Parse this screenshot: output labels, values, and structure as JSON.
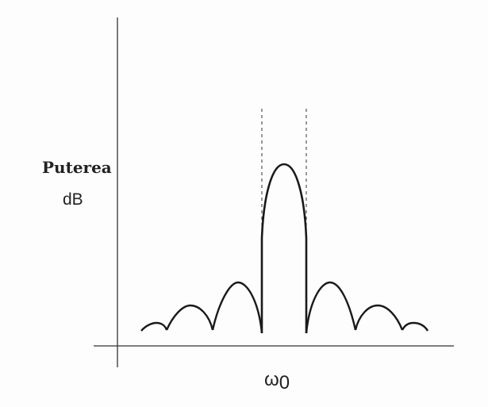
{
  "y_label_title": "Puterea",
  "y_label_unit": "dB",
  "x_label_symbol": "ω",
  "x_label_subscript": "0",
  "colors": {
    "curve": "#1a1a1a",
    "axis": "#333333",
    "dashed_lines": "#333333",
    "background": "#fdfdfd"
  }
}
